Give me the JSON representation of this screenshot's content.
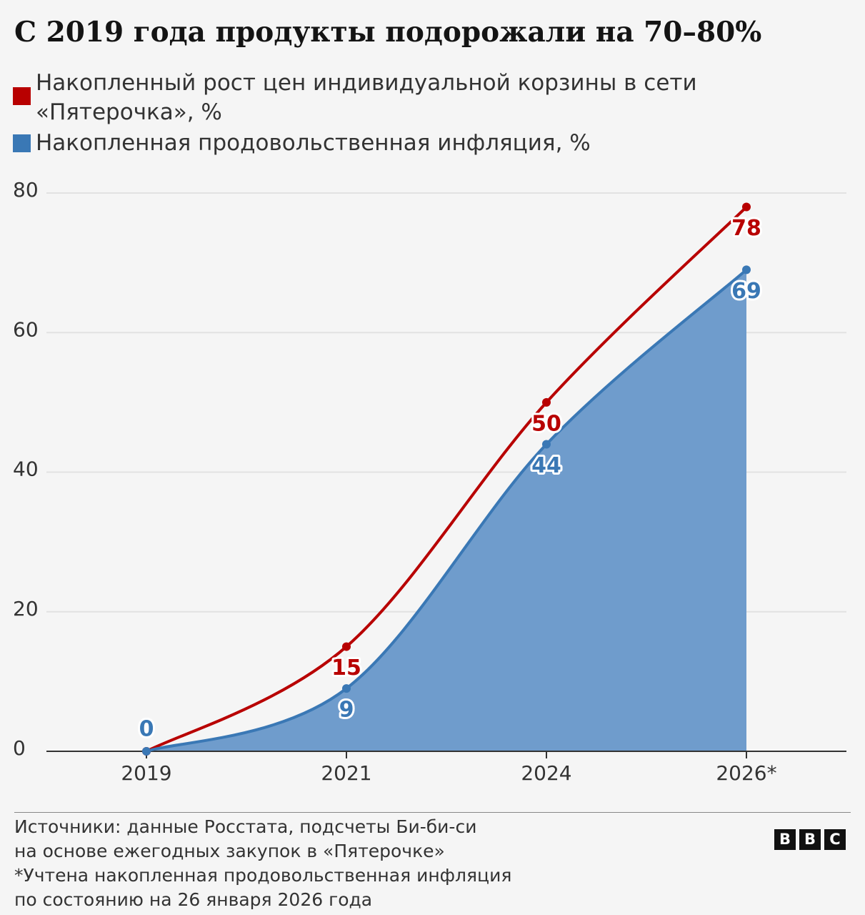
{
  "chart_data": {
    "type": "line",
    "title": "С 2019 года продукты подорожали на 70–80%",
    "categories": [
      "2019",
      "2021",
      "2024",
      "2026*"
    ],
    "series": [
      {
        "name": "Накопленный рост цен индивидуальной корзины в сети «Пятерочка», %",
        "color": "#b80000",
        "area": false,
        "values": [
          0,
          15,
          50,
          78
        ]
      },
      {
        "name": "Накопленная продовольственная инфляция, %",
        "color": "#3a78b5",
        "area": true,
        "area_color": "#6f9ccc",
        "values": [
          0,
          9,
          44,
          69
        ]
      }
    ],
    "ylim": [
      0,
      80
    ],
    "yticks": [
      0,
      20,
      40,
      60,
      80
    ],
    "grid": true,
    "notes": [
      "Источники: данные Росстата, подсчеты Би-би-си",
      "на основе ежегодных закупок в «Пятерочке»",
      "*Учтена накопленная продовольственная инфляция",
      "по состоянию на 26 января 2026 года"
    ],
    "logo": [
      "B",
      "B",
      "C"
    ]
  }
}
